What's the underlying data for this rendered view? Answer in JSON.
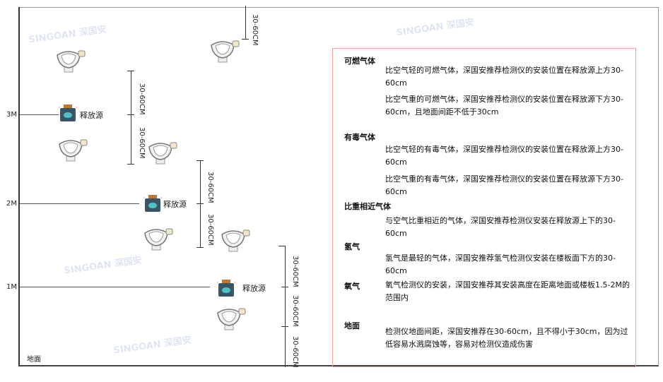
{
  "levels": {
    "m3": "3M",
    "m2": "2M",
    "m1": "1M",
    "ground": "地面"
  },
  "dimension_label": "30-60CM",
  "source_label": "释放源",
  "watermark": "SINGOAN 深国安",
  "colors": {
    "panel_border": "#f4a0a4",
    "source_body": "#3a5566",
    "source_accent": "#4fc3c8",
    "source_cap": "#c07830"
  },
  "panel": {
    "combustible": {
      "title": "可燃气体",
      "light": "比空气轻的可燃气体，深国安推荐检测仪的安装位置在释放源上方30-60cm",
      "heavy": "比空气重的可燃气体，深国安推荐检测仪的安装位置在释放源下方30-60cm，且地面间距不低于30cm"
    },
    "toxic": {
      "title": "有毒气体",
      "light": "比空气轻的有毒气体，深国安推荐检测仪的安装位置在释放源上方30-60cm",
      "heavy": "比空气重的有毒气体，深国安推荐检测仪的安装位置在释放源下方30-60cm"
    },
    "similar": {
      "title": "比重相近气体",
      "text": "与空气比重相近的气体，深国安推荐检测仪安装在释放源上下的30-60cm"
    },
    "hydrogen": {
      "title": "氢气",
      "text": "氢气是最轻的气体，深国安推荐氢气检测仪安装在楼板面下方的30-60cm"
    },
    "oxygen": {
      "title": "氧气",
      "text": "氧气检测仪的安装，深国安推荐其安装高度在距离地面或楼板1.5-2M的范围内"
    },
    "ground": {
      "title": "地面",
      "text": "检测仪地面间距，深国安推荐在30-60cm，且不得小于30cm，因为过低容易水溅腐蚀等，容易对检测仪造成伤害"
    }
  }
}
